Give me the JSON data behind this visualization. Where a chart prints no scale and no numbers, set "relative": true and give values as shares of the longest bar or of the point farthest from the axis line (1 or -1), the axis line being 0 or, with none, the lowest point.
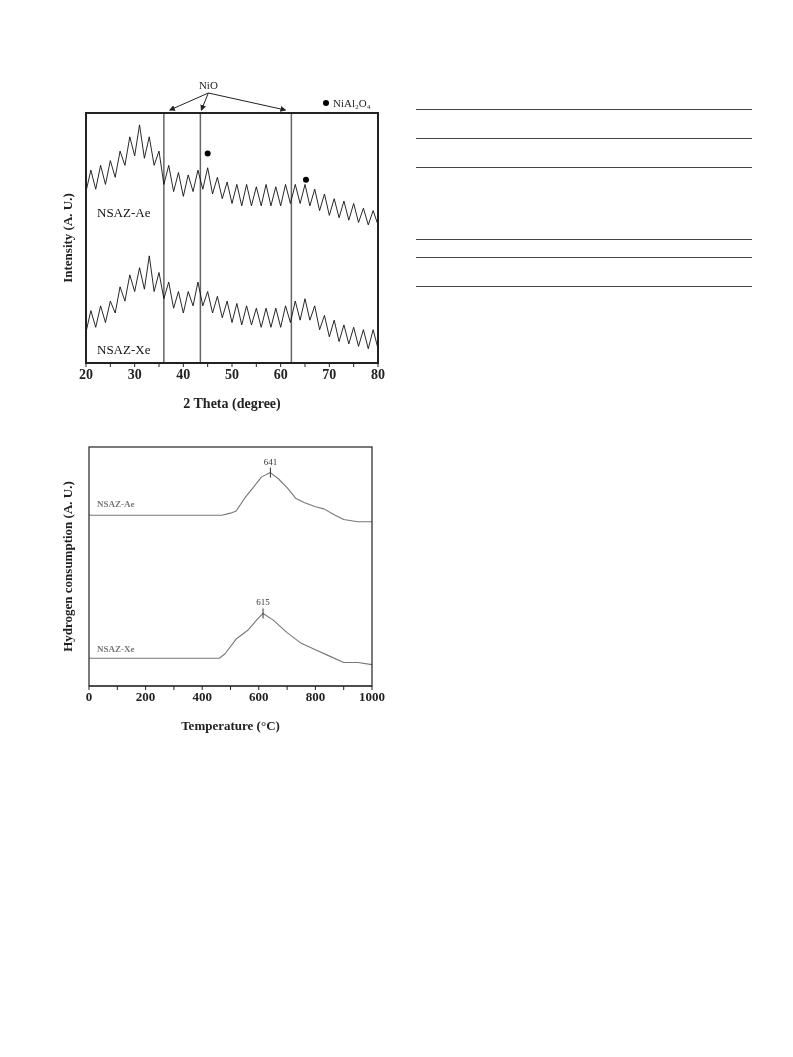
{
  "chart_data": [
    {
      "type": "line",
      "xlabel": "2 Theta (degree)",
      "ylabel": "Intensity (A. U.)",
      "relative": true,
      "xlim": [
        20,
        80
      ],
      "xticks": [
        20,
        {
          "value": 25,
          "label": null
        },
        30,
        {
          "value": 35,
          "label": null
        },
        40,
        {
          "value": 45,
          "label": null
        },
        50,
        {
          "value": 55,
          "label": null
        },
        60,
        {
          "value": 65,
          "label": null
        },
        70,
        {
          "value": 75,
          "label": null
        },
        80
      ],
      "tick_labels": "x",
      "legend": "top right",
      "annotations": [
        "NiO"
      ],
      "x": [
        20,
        21,
        22,
        23,
        24,
        25,
        26,
        27,
        28,
        29,
        30,
        31,
        32,
        33,
        34,
        35,
        36,
        37,
        38,
        39,
        40,
        41,
        42,
        43,
        44,
        45,
        46,
        47,
        48,
        49,
        50,
        51,
        52,
        53,
        54,
        55,
        56,
        57,
        58,
        59,
        60,
        61,
        62,
        63,
        64,
        65,
        66,
        67,
        68,
        69,
        70,
        71,
        72,
        73,
        74,
        75,
        76,
        77,
        78,
        79,
        80
      ],
      "ref_lines": [
        {
          "axis": "x",
          "value": 36,
          "color": "#666666"
        },
        {
          "axis": "x",
          "value": 43.5,
          "color": "#666666"
        },
        {
          "axis": "x",
          "value": 62.2,
          "color": "#666666"
        }
      ],
      "series": [
        {
          "name": "NSAZ-Ae",
          "type": "line",
          "color": "#111111",
          "values": [
            0.72,
            0.81,
            0.73,
            0.83,
            0.75,
            0.85,
            0.78,
            0.89,
            0.83,
            0.95,
            0.87,
            1.0,
            0.86,
            0.95,
            0.83,
            0.89,
            0.75,
            0.83,
            0.72,
            0.8,
            0.7,
            0.79,
            0.72,
            0.81,
            0.73,
            0.82,
            0.71,
            0.78,
            0.69,
            0.76,
            0.67,
            0.75,
            0.66,
            0.75,
            0.66,
            0.74,
            0.66,
            0.75,
            0.66,
            0.74,
            0.66,
            0.75,
            0.67,
            0.75,
            0.67,
            0.75,
            0.66,
            0.73,
            0.64,
            0.71,
            0.62,
            0.69,
            0.61,
            0.68,
            0.6,
            0.67,
            0.59,
            0.65,
            0.58,
            0.64,
            0.58
          ]
        },
        {
          "name": "NSAZ-Xe",
          "type": "line",
          "color": "#111111",
          "values": [
            0.13,
            0.22,
            0.15,
            0.24,
            0.17,
            0.26,
            0.21,
            0.32,
            0.26,
            0.37,
            0.3,
            0.4,
            0.31,
            0.45,
            0.3,
            0.38,
            0.27,
            0.34,
            0.23,
            0.3,
            0.21,
            0.3,
            0.24,
            0.34,
            0.24,
            0.3,
            0.21,
            0.28,
            0.19,
            0.26,
            0.17,
            0.25,
            0.16,
            0.24,
            0.16,
            0.23,
            0.15,
            0.23,
            0.15,
            0.23,
            0.15,
            0.24,
            0.17,
            0.26,
            0.18,
            0.27,
            0.18,
            0.24,
            0.14,
            0.2,
            0.11,
            0.18,
            0.09,
            0.16,
            0.08,
            0.15,
            0.07,
            0.14,
            0.06,
            0.14,
            0.06
          ]
        },
        {
          "name": "NiAl₂O₄",
          "type": "scatter",
          "marker": "circle",
          "color": "#000000",
          "x": [
            45,
            65.2
          ],
          "values": [
            0.88,
            0.77
          ]
        }
      ]
    },
    {
      "type": "line",
      "xlabel": "Temperature (°C)",
      "ylabel": "Hydrogen consumption (A. U.)",
      "relative": true,
      "xlim": [
        0,
        1000
      ],
      "xticks": [
        0,
        {
          "value": 100,
          "label": null
        },
        200,
        {
          "value": 300,
          "label": null
        },
        400,
        {
          "value": 500,
          "label": null
        },
        600,
        {
          "value": 700,
          "label": null
        },
        800,
        {
          "value": 900,
          "label": null
        },
        1000
      ],
      "tick_labels": "x",
      "annotations": [
        {
          "text": "641",
          "x": 641,
          "y": 1
        },
        {
          "text": "615",
          "x": 615,
          "y": 0.34
        }
      ],
      "series": [
        {
          "name": "NSAZ-Ae",
          "color": "#777777",
          "x": [
            0,
            100,
            200,
            300,
            400,
            470,
            500,
            520,
            550,
            580,
            610,
            641,
            670,
            700,
            730,
            760,
            800,
            830,
            870,
            900,
            950,
            1000
          ],
          "values": [
            0.8,
            0.8,
            0.8,
            0.8,
            0.8,
            0.8,
            0.81,
            0.82,
            0.88,
            0.93,
            0.98,
            1,
            0.97,
            0.93,
            0.88,
            0.86,
            0.84,
            0.83,
            0.8,
            0.78,
            0.77,
            0.77
          ]
        },
        {
          "name": "NSAZ-Xe",
          "color": "#777777",
          "x": [
            0,
            100,
            200,
            300,
            400,
            460,
            480,
            520,
            560,
            600,
            615,
            650,
            700,
            750,
            800,
            850,
            900,
            950,
            1000
          ],
          "values": [
            0.13,
            0.13,
            0.13,
            0.13,
            0.13,
            0.13,
            0.15,
            0.22,
            0.26,
            0.32,
            0.34,
            0.31,
            0.25,
            0.2,
            0.17,
            0.14,
            0.11,
            0.11,
            0.1
          ]
        }
      ]
    }
  ]
}
